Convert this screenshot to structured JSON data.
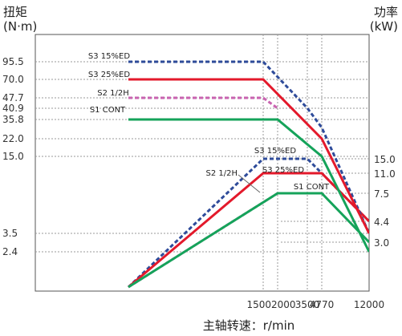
{
  "chart_data": {
    "type": "line",
    "title": "",
    "xlabel": "主轴转速：r/min",
    "ylabel_left": {
      "line1": "扭矩",
      "line2": "(N·m)"
    },
    "ylabel_right": {
      "line1": "功率",
      "line2": "(kW)"
    },
    "grid": true,
    "x_ticks": [
      "1500",
      "2000",
      "3500",
      "4770",
      "12000"
    ],
    "torque_ticks": [
      "95.5",
      "70.0",
      "47.7",
      "40.9",
      "35.8",
      "22.0",
      "15.0",
      "3.5",
      "2.4"
    ],
    "power_ticks": [
      "15.0",
      "11.0",
      "7.5",
      "4.4",
      "3.0"
    ],
    "colors": {
      "S3 15%ED": "#2e4b9a",
      "S3 25%ED": "#e3192b",
      "S2 1/2H": "#c963b0",
      "S1 CONT": "#15a35a"
    },
    "torque_series": [
      {
        "name": "S3 15%ED",
        "dashed": true,
        "x": [
          0,
          1500,
          3500,
          4770,
          12000
        ],
        "y": [
          95.5,
          95.5,
          41.0,
          30.0,
          3.5
        ]
      },
      {
        "name": "S3 25%ED",
        "dashed": false,
        "x": [
          0,
          1500,
          4770,
          12000
        ],
        "y": [
          70.0,
          70.0,
          22.0,
          3.5
        ]
      },
      {
        "name": "S2 1/2H",
        "dashed": true,
        "x": [
          0,
          1500,
          2000
        ],
        "y": [
          47.7,
          47.7,
          40.9
        ]
      },
      {
        "name": "S1 CONT",
        "dashed": false,
        "x": [
          0,
          2000,
          4770,
          12000
        ],
        "y": [
          35.8,
          35.8,
          15.0,
          2.4
        ]
      }
    ],
    "power_series": [
      {
        "name": "S3 15%ED",
        "dashed": true,
        "x": [
          0,
          1500,
          3500,
          4770,
          12000
        ],
        "y": [
          0,
          15.0,
          15.0,
          11.0,
          4.4
        ]
      },
      {
        "name": "S3 25%ED",
        "dashed": false,
        "x": [
          0,
          1500,
          4770,
          12000
        ],
        "y": [
          0,
          11.0,
          11.0,
          4.4
        ]
      },
      {
        "name": "S2 1/2H",
        "dashed": true,
        "x": [
          0,
          2000
        ],
        "y": [
          0,
          7.5
        ]
      },
      {
        "name": "S1 CONT",
        "dashed": false,
        "x": [
          0,
          2000,
          4770,
          12000
        ],
        "y": [
          0,
          7.5,
          7.5,
          3.0
        ]
      }
    ],
    "torque_labels": [
      "S3 15%ED",
      "S3 25%ED",
      "S2 1/2H",
      "S1 CONT"
    ],
    "power_labels": [
      "S3 15%ED",
      "S3 25%ED",
      "S2 1/2H",
      "S1 CONT"
    ]
  }
}
